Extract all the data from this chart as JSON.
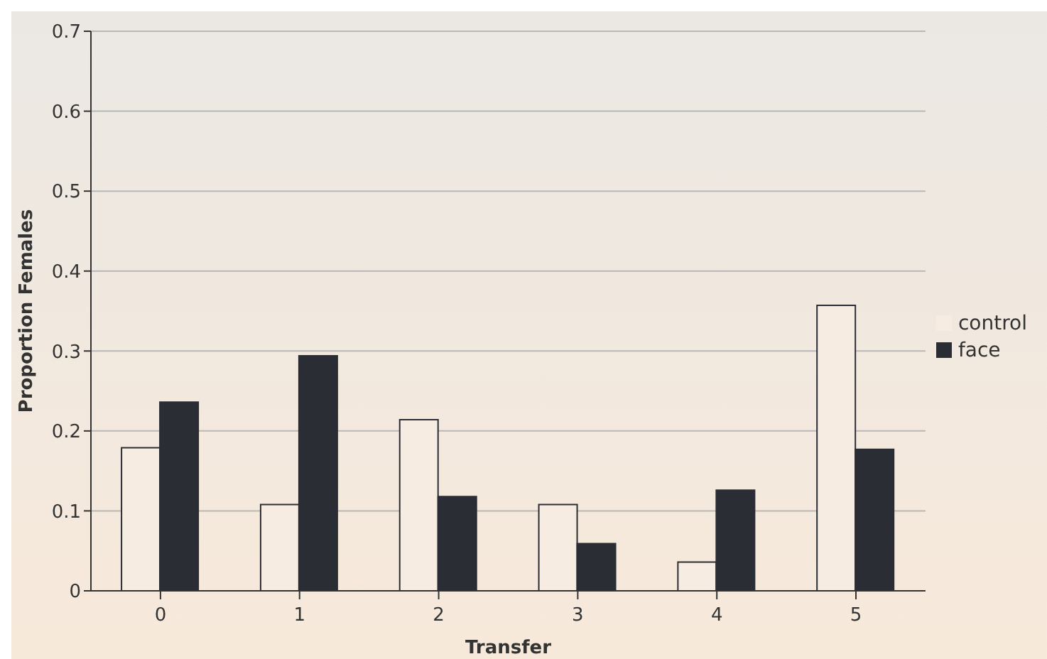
{
  "chart_data": {
    "type": "bar",
    "xlabel": "Transfer",
    "ylabel": "Proportion Females",
    "categories": [
      "0",
      "1",
      "2",
      "3",
      "4",
      "5"
    ],
    "series": [
      {
        "name": "control",
        "color": "#f6ece1",
        "values": [
          0.179,
          0.108,
          0.214,
          0.108,
          0.036,
          0.357
        ]
      },
      {
        "name": "face",
        "color": "#2b2d35",
        "values": [
          0.236,
          0.294,
          0.118,
          0.059,
          0.126,
          0.177
        ]
      }
    ],
    "ylim": [
      0,
      0.7
    ],
    "yticks": [
      0,
      0.1,
      0.2,
      0.3,
      0.4,
      0.5,
      0.6,
      0.7
    ],
    "grid": "y",
    "legend": "right"
  }
}
